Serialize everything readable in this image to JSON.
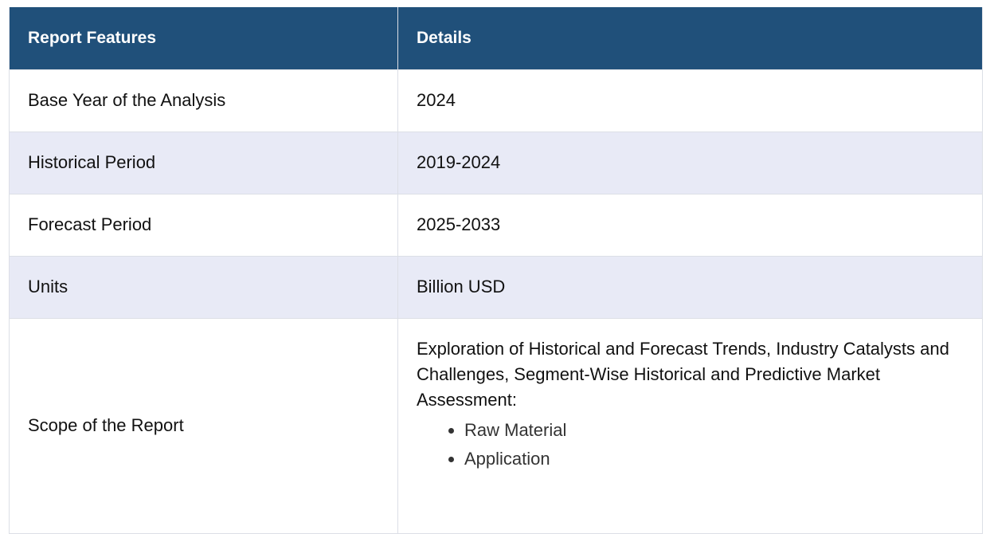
{
  "table": {
    "headers": [
      "Report Features",
      "Details"
    ],
    "rows": [
      {
        "feature": "Base Year of the Analysis",
        "detail": "2024"
      },
      {
        "feature": "Historical Period",
        "detail": "2019-2024"
      },
      {
        "feature": "Forecast Period",
        "detail": "2025-2033"
      },
      {
        "feature": "Units",
        "detail": "Billion USD"
      }
    ],
    "scope": {
      "feature": "Scope of the Report",
      "intro": "Exploration of Historical and Forecast Trends, Industry Catalysts and Challenges, Segment-Wise Historical and Predictive Market Assessment:",
      "items": [
        "Raw Material",
        "Application"
      ]
    }
  },
  "colors": {
    "header_bg": "#20507a",
    "alt_row_bg": "#e8eaf6",
    "border": "#dcdfe6"
  }
}
